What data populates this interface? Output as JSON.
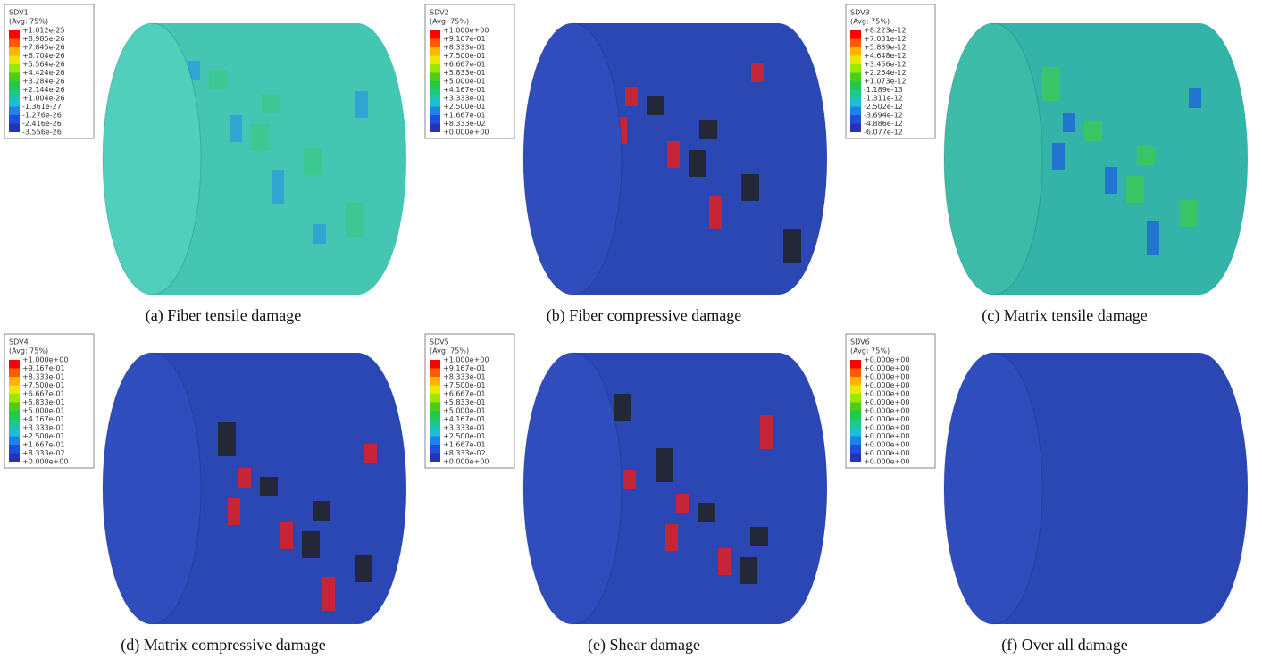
{
  "panels": [
    {
      "caption": "(a) Fiber tensile damage",
      "legend": {
        "title": "SDV1",
        "subtitle": "(Avg: 75%)",
        "labels": [
          "+1.012e-25",
          "+8.985e-26",
          "+7.845e-26",
          "+6.704e-26",
          "+5.564e-26",
          "+4.424e-26",
          "+3.284e-26",
          "+2.144e-26",
          "+1.004e-26",
          "-1.361e-27",
          "-1.276e-26",
          "-2.416e-26",
          "-3.556e-26"
        ]
      }
    },
    {
      "caption": "(b) Fiber compressive damage",
      "legend": {
        "title": "SDV2",
        "subtitle": "(Avg: 75%)",
        "labels": [
          "+1.000e+00",
          "+9.167e-01",
          "+8.333e-01",
          "+7.500e-01",
          "+6.667e-01",
          "+5.833e-01",
          "+5.000e-01",
          "+4.167e-01",
          "+3.333e-01",
          "+2.500e-01",
          "+1.667e-01",
          "+8.333e-02",
          "+0.000e+00"
        ]
      }
    },
    {
      "caption": "(c) Matrix tensile damage",
      "legend": {
        "title": "SDV3",
        "subtitle": "(Avg: 75%)",
        "labels": [
          "+8.223e-12",
          "+7.031e-12",
          "+5.839e-12",
          "+4.648e-12",
          "+3.456e-12",
          "+2.264e-12",
          "+1.073e-12",
          "-1.189e-13",
          "-1.311e-12",
          "-2.502e-12",
          "-3.694e-12",
          "-4.886e-12",
          "-6.077e-12"
        ]
      }
    },
    {
      "caption": "(d) Matrix compressive damage",
      "legend": {
        "title": "SDV4",
        "subtitle": "(Avg: 75%)",
        "labels": [
          "+1.000e+00",
          "+9.167e-01",
          "+8.333e-01",
          "+7.500e-01",
          "+6.667e-01",
          "+5.833e-01",
          "+5.000e-01",
          "+4.167e-01",
          "+3.333e-01",
          "+2.500e-01",
          "+1.667e-01",
          "+8.333e-02",
          "+0.000e+00"
        ]
      }
    },
    {
      "caption": "(e) Shear damage",
      "legend": {
        "title": "SDV5",
        "subtitle": "(Avg: 75%)",
        "labels": [
          "+1.000e+00",
          "+9.167e-01",
          "+8.333e-01",
          "+7.500e-01",
          "+6.667e-01",
          "+5.833e-01",
          "+5.000e-01",
          "+4.167e-01",
          "+3.333e-01",
          "+2.500e-01",
          "+1.667e-01",
          "+8.333e-02",
          "+0.000e+00"
        ]
      }
    },
    {
      "caption": "(f) Over all damage",
      "legend": {
        "title": "SDV6",
        "subtitle": "(Avg: 75%)",
        "labels": [
          "+0.000e+00",
          "+0.000e+00",
          "+0.000e+00",
          "+0.000e+00",
          "+0.000e+00",
          "+0.000e+00",
          "+0.000e+00",
          "+0.000e+00",
          "+0.000e+00",
          "+0.000e+00",
          "+0.000e+00",
          "+0.000e+00",
          "+0.000e+00"
        ]
      }
    }
  ]
}
